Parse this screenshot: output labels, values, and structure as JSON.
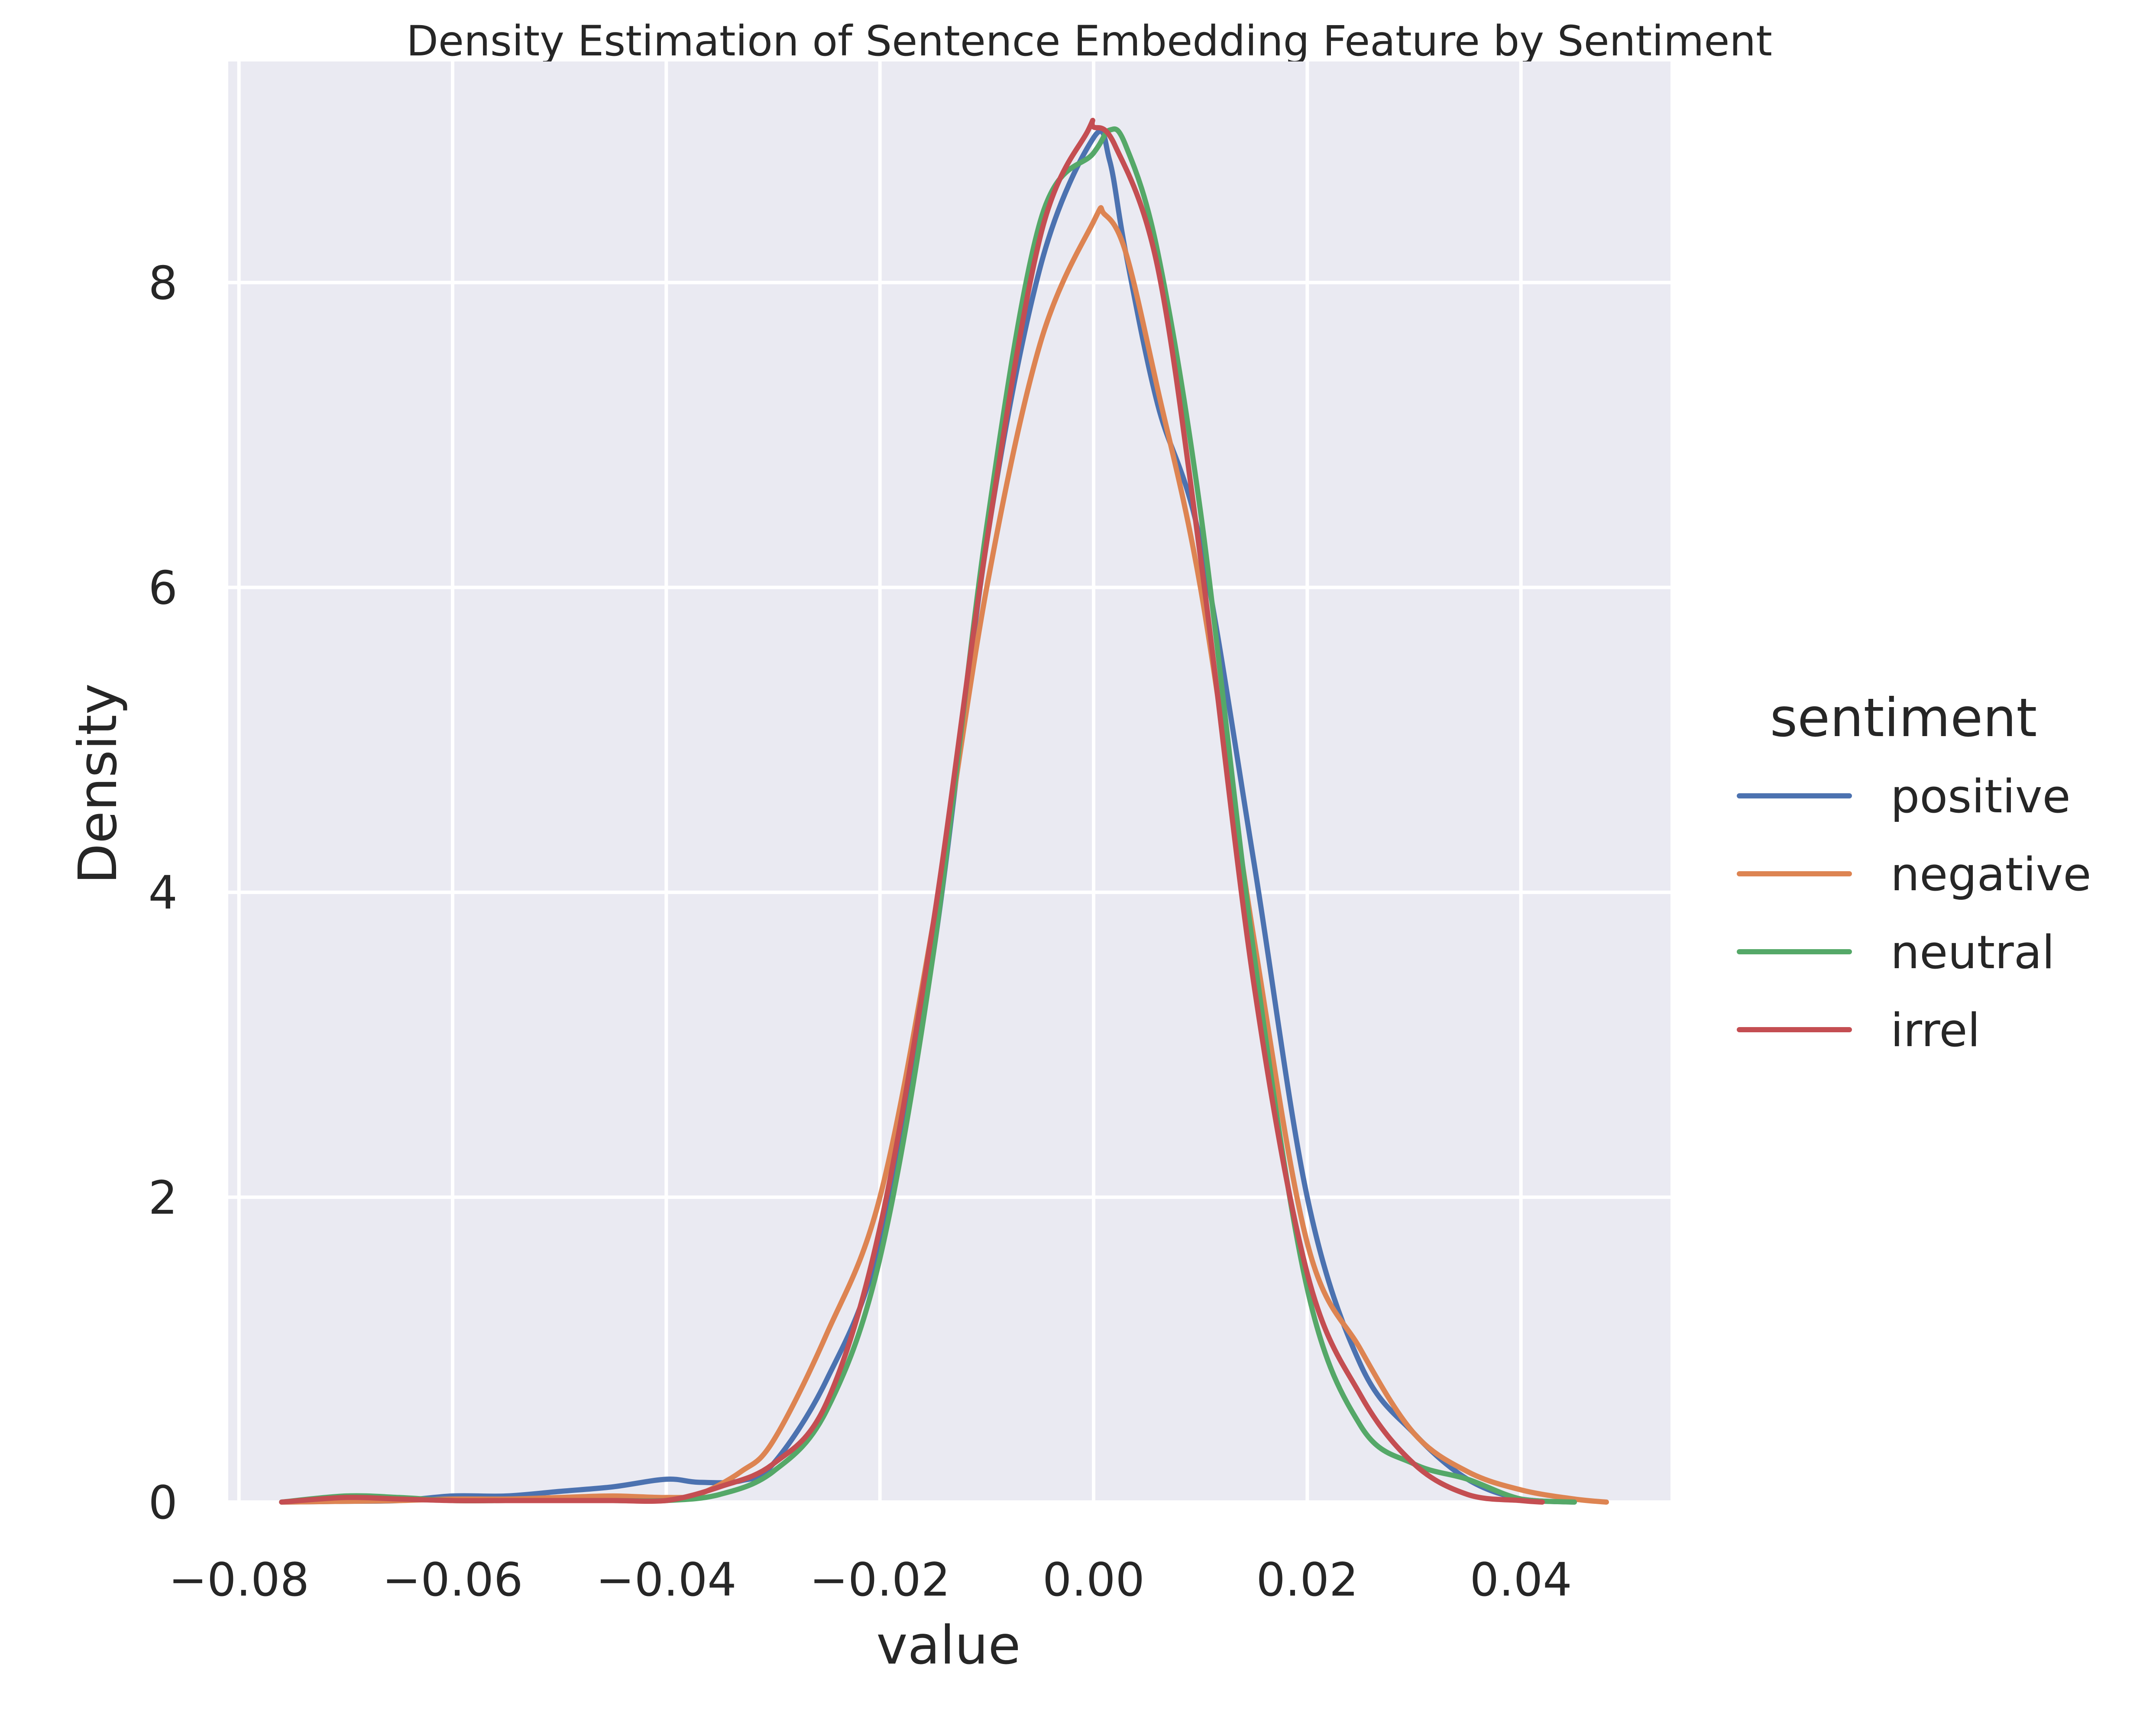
{
  "chart_data": {
    "type": "line",
    "title": "Density Estimation of Sentence Embedding Feature by Sentiment",
    "xlabel": "value",
    "ylabel": "Density",
    "xlim": [
      -0.081,
      0.054
    ],
    "ylim": [
      0,
      9.45
    ],
    "x_ticks": [
      -0.08,
      -0.06,
      -0.04,
      -0.02,
      0.0,
      0.02,
      0.04
    ],
    "x_tick_labels": [
      "−0.08",
      "−0.06",
      "−0.04",
      "−0.02",
      "0.00",
      "0.02",
      "0.04"
    ],
    "y_ticks": [
      0,
      2,
      4,
      6,
      8
    ],
    "y_tick_labels": [
      "0",
      "2",
      "4",
      "6",
      "8"
    ],
    "grid": true,
    "legend": {
      "title": "sentiment",
      "placement": "right"
    },
    "colors": {
      "plot_background": "#eaeaf2",
      "grid": "#ffffff",
      "positive": "#4c72b0",
      "negative": "#dd8452",
      "neutral": "#55a868",
      "irrel": "#c44e52"
    },
    "series": [
      {
        "name": "positive",
        "color": "#4c72b0",
        "points": [
          [
            -0.076,
            0
          ],
          [
            -0.07,
            0.005
          ],
          [
            -0.065,
            0.01
          ],
          [
            -0.06,
            0.04
          ],
          [
            -0.055,
            0.04
          ],
          [
            -0.05,
            0.07
          ],
          [
            -0.045,
            0.1
          ],
          [
            -0.04,
            0.15
          ],
          [
            -0.037,
            0.13
          ],
          [
            -0.033,
            0.14
          ],
          [
            -0.03,
            0.25
          ],
          [
            -0.025,
            0.8
          ],
          [
            -0.02,
            1.7
          ],
          [
            -0.015,
            3.6
          ],
          [
            -0.01,
            6.3
          ],
          [
            -0.005,
            8.1
          ],
          [
            0.0,
            8.95
          ],
          [
            0.0015,
            8.8
          ],
          [
            0.003,
            8.2
          ],
          [
            0.006,
            7.2
          ],
          [
            0.01,
            6.3
          ],
          [
            0.015,
            4.2
          ],
          [
            0.02,
            2.0
          ],
          [
            0.025,
            0.9
          ],
          [
            0.03,
            0.45
          ],
          [
            0.035,
            0.15
          ],
          [
            0.04,
            0.02
          ],
          [
            0.045,
            0
          ]
        ]
      },
      {
        "name": "negative",
        "color": "#dd8452",
        "points": [
          [
            -0.076,
            0
          ],
          [
            -0.07,
            0.005
          ],
          [
            -0.065,
            0.01
          ],
          [
            -0.06,
            0.02
          ],
          [
            -0.055,
            0.02
          ],
          [
            -0.05,
            0.03
          ],
          [
            -0.045,
            0.04
          ],
          [
            -0.04,
            0.03
          ],
          [
            -0.037,
            0.05
          ],
          [
            -0.033,
            0.2
          ],
          [
            -0.03,
            0.4
          ],
          [
            -0.025,
            1.1
          ],
          [
            -0.02,
            2.0
          ],
          [
            -0.015,
            3.8
          ],
          [
            -0.01,
            6.0
          ],
          [
            -0.005,
            7.6
          ],
          [
            0.0,
            8.4
          ],
          [
            0.001,
            8.45
          ],
          [
            0.003,
            8.2
          ],
          [
            0.006,
            7.3
          ],
          [
            0.01,
            6.0
          ],
          [
            0.015,
            3.7
          ],
          [
            0.02,
            1.7
          ],
          [
            0.025,
            1.0
          ],
          [
            0.03,
            0.45
          ],
          [
            0.035,
            0.2
          ],
          [
            0.04,
            0.08
          ],
          [
            0.045,
            0.02
          ],
          [
            0.048,
            0
          ]
        ]
      },
      {
        "name": "neutral",
        "color": "#55a868",
        "points": [
          [
            -0.076,
            0
          ],
          [
            -0.07,
            0.04
          ],
          [
            -0.065,
            0.03
          ],
          [
            -0.06,
            0.01
          ],
          [
            -0.055,
            0.01
          ],
          [
            -0.05,
            0.01
          ],
          [
            -0.045,
            0.01
          ],
          [
            -0.04,
            0.01
          ],
          [
            -0.035,
            0.05
          ],
          [
            -0.03,
            0.2
          ],
          [
            -0.025,
            0.6
          ],
          [
            -0.02,
            1.6
          ],
          [
            -0.015,
            3.6
          ],
          [
            -0.01,
            6.4
          ],
          [
            -0.005,
            8.4
          ],
          [
            0.0,
            8.85
          ],
          [
            0.0015,
            9.0
          ],
          [
            0.003,
            8.9
          ],
          [
            0.006,
            8.2
          ],
          [
            0.01,
            6.5
          ],
          [
            0.015,
            3.6
          ],
          [
            0.02,
            1.4
          ],
          [
            0.025,
            0.5
          ],
          [
            0.03,
            0.25
          ],
          [
            0.035,
            0.15
          ],
          [
            0.04,
            0.02
          ],
          [
            0.045,
            0
          ]
        ]
      },
      {
        "name": "irrel",
        "color": "#c44e52",
        "points": [
          [
            -0.076,
            0
          ],
          [
            -0.07,
            0.03
          ],
          [
            -0.065,
            0.02
          ],
          [
            -0.06,
            0.01
          ],
          [
            -0.055,
            0.01
          ],
          [
            -0.05,
            0.01
          ],
          [
            -0.045,
            0.01
          ],
          [
            -0.04,
            0.01
          ],
          [
            -0.035,
            0.1
          ],
          [
            -0.03,
            0.25
          ],
          [
            -0.025,
            0.65
          ],
          [
            -0.02,
            1.8
          ],
          [
            -0.015,
            3.8
          ],
          [
            -0.01,
            6.3
          ],
          [
            -0.005,
            8.3
          ],
          [
            -0.0005,
            9.0
          ],
          [
            0.0,
            9.02
          ],
          [
            0.002,
            8.9
          ],
          [
            0.006,
            8.1
          ],
          [
            0.01,
            6.2
          ],
          [
            0.015,
            3.4
          ],
          [
            0.02,
            1.5
          ],
          [
            0.025,
            0.7
          ],
          [
            0.03,
            0.25
          ],
          [
            0.035,
            0.05
          ],
          [
            0.04,
            0.01
          ],
          [
            0.042,
            0
          ]
        ]
      }
    ]
  }
}
